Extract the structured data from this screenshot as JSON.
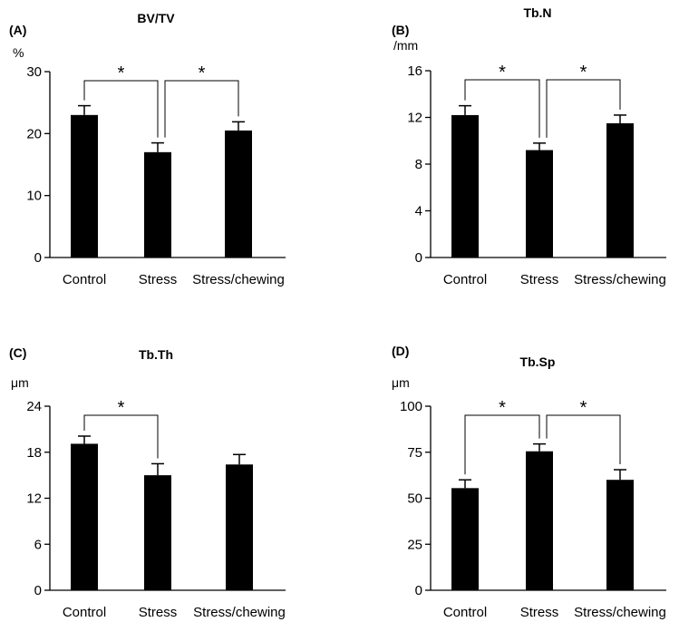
{
  "colors": {
    "bar": "#000000",
    "axis": "#000000",
    "background": "#ffffff"
  },
  "chart_data": [
    {
      "panel": "(A)",
      "type": "bar",
      "title": "BV/TV",
      "unit": "%",
      "categories": [
        "Control",
        "Stress",
        "Stress/chewing"
      ],
      "values": [
        23,
        17,
        20.5
      ],
      "errors": [
        1.5,
        1.5,
        1.4
      ],
      "ylim": [
        0,
        30
      ],
      "yticks": [
        0,
        10,
        20,
        30
      ],
      "significance": [
        {
          "from": 0,
          "to": 1,
          "label": "*"
        },
        {
          "from": 1,
          "to": 2,
          "label": "*"
        }
      ],
      "grid": false,
      "legend": "none"
    },
    {
      "panel": "(B)",
      "type": "bar",
      "title": "Tb.N",
      "unit": "/mm",
      "categories": [
        "Control",
        "Stress",
        "Stress/chewing"
      ],
      "values": [
        12.2,
        9.2,
        11.5
      ],
      "errors": [
        0.8,
        0.6,
        0.7
      ],
      "ylim": [
        0,
        16
      ],
      "yticks": [
        0,
        4,
        8,
        12,
        16
      ],
      "significance": [
        {
          "from": 0,
          "to": 1,
          "label": "*"
        },
        {
          "from": 1,
          "to": 2,
          "label": "*"
        }
      ],
      "grid": false,
      "legend": "none"
    },
    {
      "panel": "(C)",
      "type": "bar",
      "title": "Tb.Th",
      "unit": "μm",
      "categories": [
        "Control",
        "Stress",
        "Stress/chewing"
      ],
      "values": [
        19.1,
        15.0,
        16.4
      ],
      "errors": [
        1.0,
        1.5,
        1.3
      ],
      "ylim": [
        0,
        24
      ],
      "yticks": [
        0,
        6,
        12,
        18,
        24
      ],
      "significance": [
        {
          "from": 0,
          "to": 1,
          "label": "*"
        }
      ],
      "grid": false,
      "legend": "none"
    },
    {
      "panel": "(D)",
      "type": "bar",
      "title": "Tb.Sp",
      "unit": "μm",
      "categories": [
        "Control",
        "Stress",
        "Stress/chewing"
      ],
      "values": [
        55.5,
        75.5,
        60
      ],
      "errors": [
        4.5,
        4.0,
        5.5
      ],
      "ylim": [
        0,
        100
      ],
      "yticks": [
        0,
        25,
        50,
        75,
        100
      ],
      "significance": [
        {
          "from": 0,
          "to": 1,
          "label": "*"
        },
        {
          "from": 1,
          "to": 2,
          "label": "*"
        }
      ],
      "grid": false,
      "legend": "none"
    }
  ]
}
